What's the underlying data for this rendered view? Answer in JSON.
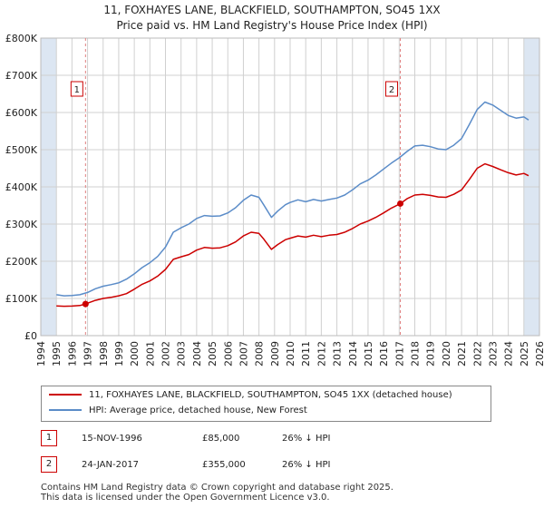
{
  "header": {
    "title_line1": "11, FOXHAYES LANE, BLACKFIELD, SOUTHAMPTON, SO45 1XX",
    "title_line2": "Price paid vs. HM Land Registry's House Price Index (HPI)"
  },
  "colors": {
    "price_paid": "#cc0000",
    "hpi": "#5b8cc8",
    "band": "#dce6f2",
    "grid": "#d0d0d0",
    "vline": "#e08080"
  },
  "legend": {
    "price_paid_label": "11, FOXHAYES LANE, BLACKFIELD, SOUTHAMPTON, SO45 1XX (detached house)",
    "hpi_label": "HPI: Average price, detached house, New Forest"
  },
  "sales": [
    {
      "num": "1",
      "date": "15-NOV-1996",
      "price": "£85,000",
      "vs_hpi": "26% ↓ HPI"
    },
    {
      "num": "2",
      "date": "24-JAN-2017",
      "price": "£355,000",
      "vs_hpi": "26% ↓ HPI"
    }
  ],
  "footer": {
    "line1": "Contains HM Land Registry data © Crown copyright and database right 2025.",
    "line2": "This data is licensed under the Open Government Licence v3.0."
  },
  "chart_data": {
    "type": "line",
    "xlim": [
      1994,
      2026
    ],
    "ylim": [
      0,
      800000
    ],
    "x_ticks": [
      1994,
      1995,
      1996,
      1997,
      1998,
      1999,
      2000,
      2001,
      2002,
      2003,
      2004,
      2005,
      2006,
      2007,
      2008,
      2009,
      2010,
      2011,
      2012,
      2013,
      2014,
      2015,
      2016,
      2017,
      2018,
      2019,
      2020,
      2021,
      2022,
      2023,
      2024,
      2025,
      2026
    ],
    "y_ticks": [
      {
        "value": 0,
        "label": "£0"
      },
      {
        "value": 100000,
        "label": "£100K"
      },
      {
        "value": 200000,
        "label": "£200K"
      },
      {
        "value": 300000,
        "label": "£300K"
      },
      {
        "value": 400000,
        "label": "£400K"
      },
      {
        "value": 500000,
        "label": "£500K"
      },
      {
        "value": 600000,
        "label": "£600K"
      },
      {
        "value": 700000,
        "label": "£700K"
      },
      {
        "value": 800000,
        "label": "£800K"
      }
    ],
    "shaded_ranges": [
      [
        1994,
        1995
      ],
      [
        2025,
        2026
      ]
    ],
    "sale_markers": [
      {
        "label": "1",
        "x": 1996.87,
        "y": 85000
      },
      {
        "label": "2",
        "x": 2017.07,
        "y": 355000
      }
    ],
    "series": [
      {
        "name": "11, FOXHAYES LANE, BLACKFIELD, SOUTHAMPTON, SO45 1XX (detached house)",
        "color": "#cc0000",
        "points": [
          [
            1995.0,
            80000
          ],
          [
            1995.5,
            79000
          ],
          [
            1996.0,
            79500
          ],
          [
            1996.5,
            81000
          ],
          [
            1996.87,
            85000
          ],
          [
            1997.5,
            95000
          ],
          [
            1998.0,
            100000
          ],
          [
            1998.5,
            103000
          ],
          [
            1999.0,
            107000
          ],
          [
            1999.5,
            113000
          ],
          [
            2000.0,
            125000
          ],
          [
            2000.5,
            138000
          ],
          [
            2001.0,
            147000
          ],
          [
            2001.5,
            160000
          ],
          [
            2002.0,
            178000
          ],
          [
            2002.5,
            205000
          ],
          [
            2003.0,
            212000
          ],
          [
            2003.5,
            218000
          ],
          [
            2004.0,
            230000
          ],
          [
            2004.5,
            237000
          ],
          [
            2005.0,
            235000
          ],
          [
            2005.5,
            236000
          ],
          [
            2006.0,
            242000
          ],
          [
            2006.5,
            252000
          ],
          [
            2007.0,
            268000
          ],
          [
            2007.5,
            278000
          ],
          [
            2008.0,
            275000
          ],
          [
            2008.3,
            260000
          ],
          [
            2008.8,
            232000
          ],
          [
            2009.2,
            245000
          ],
          [
            2009.7,
            258000
          ],
          [
            2010.0,
            262000
          ],
          [
            2010.5,
            268000
          ],
          [
            2011.0,
            265000
          ],
          [
            2011.5,
            270000
          ],
          [
            2012.0,
            266000
          ],
          [
            2012.5,
            270000
          ],
          [
            2013.0,
            272000
          ],
          [
            2013.5,
            278000
          ],
          [
            2014.0,
            288000
          ],
          [
            2014.5,
            300000
          ],
          [
            2015.0,
            308000
          ],
          [
            2015.5,
            318000
          ],
          [
            2016.0,
            330000
          ],
          [
            2016.5,
            343000
          ],
          [
            2017.07,
            355000
          ],
          [
            2017.5,
            368000
          ],
          [
            2018.0,
            378000
          ],
          [
            2018.5,
            380000
          ],
          [
            2019.0,
            377000
          ],
          [
            2019.5,
            373000
          ],
          [
            2020.0,
            372000
          ],
          [
            2020.5,
            380000
          ],
          [
            2021.0,
            392000
          ],
          [
            2021.5,
            420000
          ],
          [
            2022.0,
            450000
          ],
          [
            2022.5,
            462000
          ],
          [
            2023.0,
            455000
          ],
          [
            2023.5,
            446000
          ],
          [
            2024.0,
            438000
          ],
          [
            2024.5,
            432000
          ],
          [
            2025.0,
            436000
          ],
          [
            2025.3,
            430000
          ]
        ]
      },
      {
        "name": "HPI: Average price, detached house, New Forest",
        "color": "#5b8cc8",
        "points": [
          [
            1995.0,
            110000
          ],
          [
            1995.5,
            107000
          ],
          [
            1996.0,
            108000
          ],
          [
            1996.5,
            110000
          ],
          [
            1997.0,
            116000
          ],
          [
            1997.5,
            126000
          ],
          [
            1998.0,
            133000
          ],
          [
            1998.5,
            137000
          ],
          [
            1999.0,
            142000
          ],
          [
            1999.5,
            152000
          ],
          [
            2000.0,
            166000
          ],
          [
            2000.5,
            183000
          ],
          [
            2001.0,
            196000
          ],
          [
            2001.5,
            213000
          ],
          [
            2002.0,
            238000
          ],
          [
            2002.5,
            278000
          ],
          [
            2003.0,
            290000
          ],
          [
            2003.5,
            300000
          ],
          [
            2004.0,
            315000
          ],
          [
            2004.5,
            323000
          ],
          [
            2005.0,
            321000
          ],
          [
            2005.5,
            322000
          ],
          [
            2006.0,
            330000
          ],
          [
            2006.5,
            344000
          ],
          [
            2007.0,
            364000
          ],
          [
            2007.5,
            378000
          ],
          [
            2008.0,
            372000
          ],
          [
            2008.3,
            352000
          ],
          [
            2008.8,
            318000
          ],
          [
            2009.2,
            335000
          ],
          [
            2009.7,
            352000
          ],
          [
            2010.0,
            358000
          ],
          [
            2010.5,
            365000
          ],
          [
            2011.0,
            360000
          ],
          [
            2011.5,
            366000
          ],
          [
            2012.0,
            362000
          ],
          [
            2012.5,
            366000
          ],
          [
            2013.0,
            370000
          ],
          [
            2013.5,
            378000
          ],
          [
            2014.0,
            392000
          ],
          [
            2014.5,
            408000
          ],
          [
            2015.0,
            418000
          ],
          [
            2015.5,
            432000
          ],
          [
            2016.0,
            448000
          ],
          [
            2016.5,
            464000
          ],
          [
            2017.0,
            478000
          ],
          [
            2017.5,
            495000
          ],
          [
            2018.0,
            510000
          ],
          [
            2018.5,
            512000
          ],
          [
            2019.0,
            508000
          ],
          [
            2019.5,
            502000
          ],
          [
            2020.0,
            500000
          ],
          [
            2020.5,
            512000
          ],
          [
            2021.0,
            530000
          ],
          [
            2021.5,
            568000
          ],
          [
            2022.0,
            608000
          ],
          [
            2022.5,
            628000
          ],
          [
            2023.0,
            620000
          ],
          [
            2023.5,
            606000
          ],
          [
            2024.0,
            592000
          ],
          [
            2024.5,
            585000
          ],
          [
            2025.0,
            588000
          ],
          [
            2025.3,
            580000
          ]
        ]
      }
    ]
  }
}
